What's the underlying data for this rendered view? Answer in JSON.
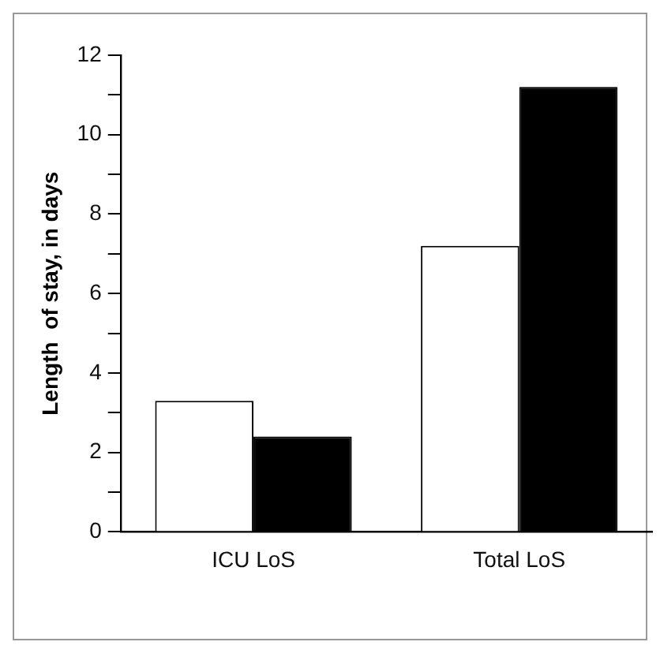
{
  "chart_data": {
    "type": "bar",
    "ylabel": "Length  of stay, in days",
    "categories": [
      "ICU LoS",
      "Total LoS"
    ],
    "series": [
      {
        "color": "#ffffff",
        "values": [
          3.3,
          7.2
        ]
      },
      {
        "color": "#000000",
        "values": [
          2.4,
          11.2
        ]
      }
    ],
    "ylim": [
      0,
      12
    ],
    "yticks": [
      0,
      {
        "value": 1,
        "label": null
      },
      2,
      {
        "value": 3,
        "label": null
      },
      4,
      {
        "value": 5,
        "label": null
      },
      6,
      {
        "value": 7,
        "label": null
      },
      8,
      {
        "value": 9,
        "label": null
      },
      10,
      {
        "value": 11,
        "label": null
      },
      12
    ],
    "grid": false,
    "legend": false
  }
}
